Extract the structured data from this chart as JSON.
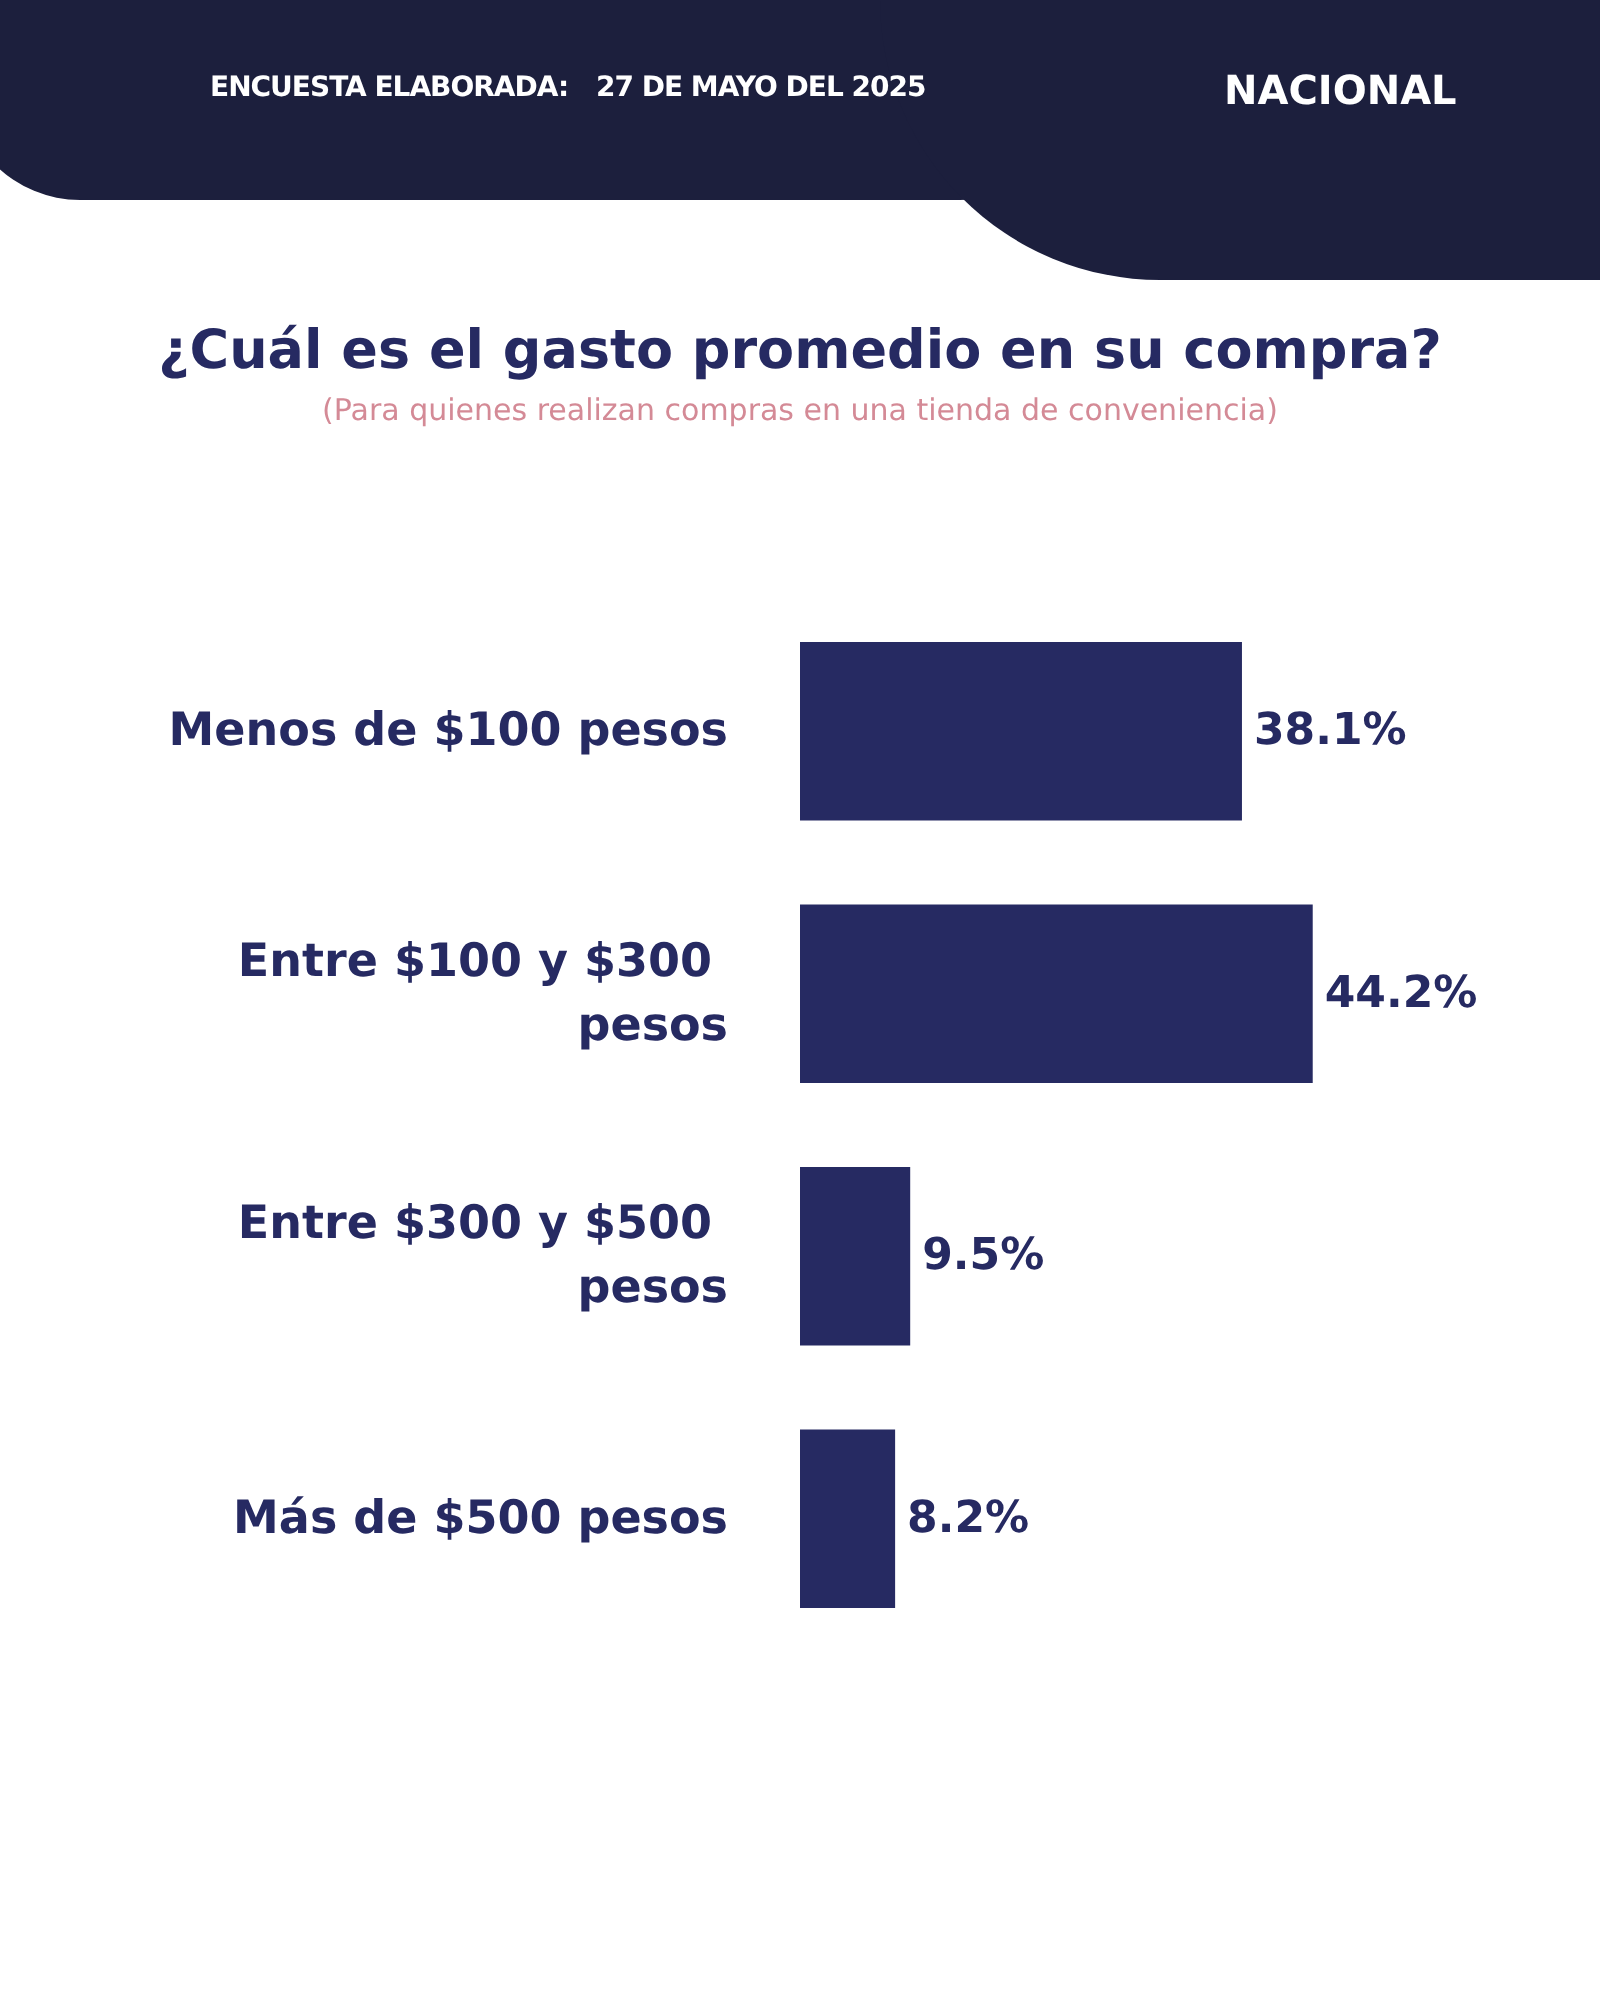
{
  "chart_data": {
    "type": "bar",
    "orientation": "horizontal",
    "title": "¿Cuál es el gasto promedio en su compra?",
    "subtitle": "(Para quienes realizan compras en una tienda de conveniencia)",
    "categories": [
      "Menos de $100 pesos",
      "Entre $100 y $300 pesos",
      "Entre $300 y $500 pesos",
      "Más de $500 pesos"
    ],
    "values": [
      38.1,
      44.2,
      9.5,
      8.2
    ],
    "value_labels": [
      "38.1%",
      "44.2%",
      "9.5%",
      "8.2%"
    ],
    "color": "#262a62",
    "annotations": [
      "ENCUESTA ELABORADA:",
      "27 DE MAYO DEL 2025",
      "NACIONAL"
    ]
  }
}
